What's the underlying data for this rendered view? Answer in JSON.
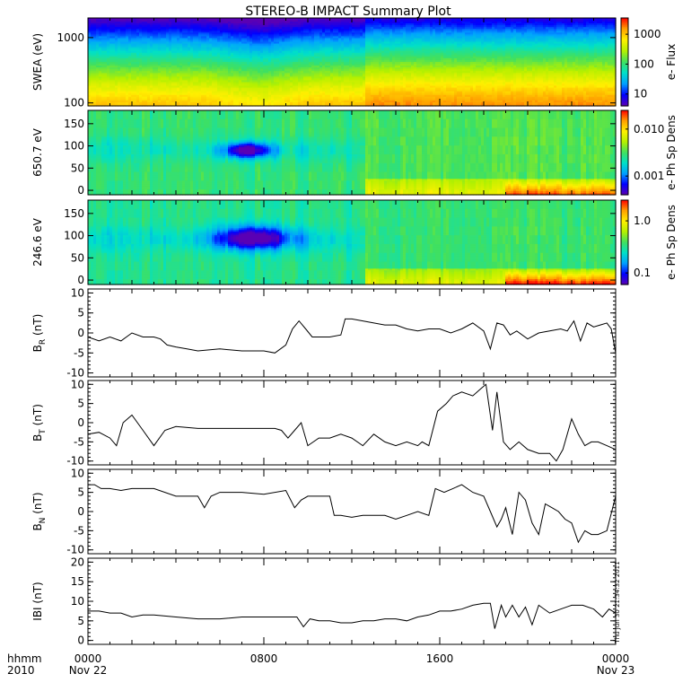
{
  "title": "STEREO-B IMPACT Summary Plot",
  "stamp": "Thu Jun 30 21:34:32 2011",
  "time_axis": {
    "corner_top": "hhmm",
    "corner_bottom": "2010",
    "ticks": [
      {
        "hours": 0,
        "top": "0000",
        "bottom": "Nov 22"
      },
      {
        "hours": 8,
        "top": "0800",
        "bottom": ""
      },
      {
        "hours": 16,
        "top": "1600",
        "bottom": ""
      },
      {
        "hours": 24,
        "top": "0000",
        "bottom": "Nov 23"
      }
    ],
    "range_hours": [
      0,
      24
    ]
  },
  "colors": {
    "colormap": [
      "#5a00b4",
      "#0000ff",
      "#00a0ff",
      "#00e0c8",
      "#40e060",
      "#b4f000",
      "#fff000",
      "#ffa000",
      "#ff0000"
    ],
    "line": "#000000"
  },
  "chart_data": [
    {
      "type": "heatmap",
      "ylabel": "SWEA (eV)",
      "yscale": "log",
      "ylim": [
        90,
        2000
      ],
      "yticks": [
        {
          "v": 100,
          "label": "100"
        },
        {
          "v": 1000,
          "label": "1000"
        }
      ],
      "colorbar": {
        "label": "e- Flux",
        "scale": "log",
        "range": [
          4,
          3500
        ],
        "ticks": [
          {
            "v": 10,
            "label": "10"
          },
          {
            "v": 100,
            "label": "100"
          },
          {
            "v": 1000,
            "label": "1000"
          }
        ]
      },
      "model": "energy"
    },
    {
      "type": "heatmap",
      "ylabel": "650.7 eV",
      "yscale": "linear",
      "ylim": [
        -10,
        180
      ],
      "yticks": [
        {
          "v": 0,
          "label": "0"
        },
        {
          "v": 50,
          "label": "50"
        },
        {
          "v": 100,
          "label": "100"
        },
        {
          "v": 150,
          "label": "150"
        }
      ],
      "colorbar": {
        "label": "e- Ph Sp Dens",
        "scale": "log",
        "range": [
          0.0004,
          0.025
        ],
        "ticks": [
          {
            "v": 0.001,
            "label": "0.001"
          },
          {
            "v": 0.01,
            "label": "0.010"
          }
        ]
      },
      "model": "pitch650",
      "features": [
        {
          "hours": [
            6.0,
            8.5
          ],
          "pitch": [
            70,
            110
          ],
          "value": "min"
        }
      ]
    },
    {
      "type": "heatmap",
      "ylabel": "246.6 eV",
      "yscale": "linear",
      "ylim": [
        -10,
        180
      ],
      "yticks": [
        {
          "v": 0,
          "label": "0"
        },
        {
          "v": 50,
          "label": "50"
        },
        {
          "v": 100,
          "label": "100"
        },
        {
          "v": 150,
          "label": "150"
        }
      ],
      "colorbar": {
        "label": "e- Ph Sp Dens",
        "scale": "log",
        "range": [
          0.06,
          2.5
        ],
        "ticks": [
          {
            "v": 0.1,
            "label": "0.1"
          },
          {
            "v": 1.0,
            "label": "1.0"
          }
        ]
      },
      "model": "pitch246",
      "features": [
        {
          "hours": [
            5.5,
            9.5
          ],
          "pitch": [
            65,
            125
          ],
          "value": "min"
        }
      ]
    },
    {
      "type": "line",
      "ylabel": "B",
      "ylabel_sub": "R",
      "ylabel_unit": " (nT)",
      "ylim": [
        -11,
        11
      ],
      "yticks": [
        -10,
        -5,
        0,
        5,
        10
      ],
      "x": [
        0,
        0.5,
        1.0,
        1.5,
        2.0,
        2.5,
        3.0,
        3.3,
        3.6,
        4.0,
        4.5,
        5.0,
        6.0,
        7.0,
        8.0,
        8.5,
        9.0,
        9.3,
        9.6,
        9.9,
        10.2,
        10.5,
        11.0,
        11.5,
        11.7,
        12.0,
        12.5,
        13.0,
        13.5,
        14.0,
        14.5,
        15.0,
        15.5,
        16.0,
        16.5,
        17.0,
        17.5,
        18.0,
        18.3,
        18.6,
        18.9,
        19.2,
        19.5,
        20.0,
        20.5,
        21.0,
        21.5,
        21.8,
        22.1,
        22.4,
        22.7,
        23.0,
        23.3,
        23.6,
        23.8,
        24.0
      ],
      "y": [
        -1,
        -2,
        -1,
        -2,
        0,
        -1,
        -1,
        -1.5,
        -3,
        -3.5,
        -4,
        -4.5,
        -4,
        -4.5,
        -4.5,
        -5,
        -3,
        1,
        3,
        1,
        -1,
        -1,
        -1,
        -0.5,
        3.5,
        3.5,
        3,
        2.5,
        2,
        2,
        1,
        0.5,
        1,
        1,
        0,
        1,
        2.5,
        0.5,
        -4,
        2.5,
        2,
        -0.5,
        0.5,
        -1.5,
        0,
        0.5,
        1,
        0.5,
        3,
        -2,
        2.5,
        1.5,
        2,
        2.5,
        1,
        -5
      ]
    },
    {
      "type": "line",
      "ylabel": "B",
      "ylabel_sub": "T",
      "ylabel_unit": " (nT)",
      "ylim": [
        -11,
        11
      ],
      "yticks": [
        -10,
        -5,
        0,
        5,
        10
      ],
      "x": [
        0,
        0.5,
        1.0,
        1.3,
        1.6,
        2.0,
        2.5,
        3.0,
        3.5,
        4.0,
        5.0,
        6.0,
        7.0,
        8.0,
        8.5,
        8.8,
        9.1,
        9.4,
        9.7,
        10.0,
        10.5,
        11.0,
        11.5,
        12.0,
        12.5,
        13.0,
        13.5,
        14.0,
        14.5,
        15.0,
        15.2,
        15.5,
        15.9,
        16.3,
        16.6,
        17.0,
        17.5,
        17.9,
        18.1,
        18.4,
        18.6,
        18.9,
        19.2,
        19.6,
        20.0,
        20.5,
        21.0,
        21.3,
        21.6,
        22.0,
        22.3,
        22.6,
        22.9,
        23.2,
        23.6,
        24.0
      ],
      "y": [
        -3,
        -2.5,
        -4,
        -6,
        0,
        2,
        -2,
        -6,
        -2,
        -1,
        -1.5,
        -1.5,
        -1.5,
        -1.5,
        -1.5,
        -2,
        -4,
        -2,
        0,
        -6,
        -4,
        -4,
        -3,
        -4,
        -6,
        -3,
        -5,
        -6,
        -5,
        -6,
        -5,
        -6,
        3,
        5,
        7,
        8,
        7,
        9,
        10,
        -2,
        8,
        -5,
        -7,
        -5,
        -7,
        -8,
        -8,
        -10,
        -7,
        1,
        -3,
        -6,
        -5,
        -5,
        -6,
        -7
      ]
    },
    {
      "type": "line",
      "ylabel": "B",
      "ylabel_sub": "N",
      "ylabel_unit": " (nT)",
      "ylim": [
        -11,
        11
      ],
      "yticks": [
        -10,
        -5,
        0,
        5,
        10
      ],
      "x": [
        0,
        0.3,
        0.6,
        1.0,
        1.5,
        2.0,
        3.0,
        4.0,
        5.0,
        5.3,
        5.6,
        6.0,
        7.0,
        8.0,
        9.0,
        9.4,
        9.7,
        10.0,
        10.5,
        11.0,
        11.2,
        11.5,
        12.0,
        12.5,
        13.0,
        13.5,
        14.0,
        14.5,
        15.0,
        15.5,
        15.8,
        16.2,
        16.6,
        17.0,
        17.5,
        18.0,
        18.3,
        18.6,
        18.8,
        19.0,
        19.3,
        19.6,
        19.9,
        20.2,
        20.5,
        20.8,
        21.1,
        21.4,
        21.7,
        22.0,
        22.3,
        22.6,
        22.9,
        23.2,
        23.6,
        24.0
      ],
      "y": [
        7,
        7,
        6,
        6,
        5.5,
        6,
        6,
        4,
        4,
        1,
        4,
        5,
        5,
        4.5,
        5.5,
        1,
        3,
        4,
        4,
        4,
        -1,
        -1,
        -1.5,
        -1,
        -1,
        -1,
        -2,
        -1,
        0,
        -1,
        6,
        5,
        6,
        7,
        5,
        4,
        0,
        -4,
        -2,
        1,
        -6,
        5,
        3,
        -3,
        -6,
        2,
        1,
        0,
        -2,
        -3,
        -8,
        -5,
        -6,
        -6,
        -5,
        4
      ]
    },
    {
      "type": "line",
      "ylabel": "IBI",
      "ylabel_sub": "",
      "ylabel_unit": " (nT)",
      "ylim": [
        -1,
        21
      ],
      "yticks": [
        0,
        5,
        10,
        15,
        20
      ],
      "x": [
        0,
        0.5,
        1.0,
        1.5,
        2.0,
        2.5,
        3.0,
        4.0,
        5.0,
        6.0,
        7.0,
        8.0,
        9.0,
        9.5,
        9.8,
        10.1,
        10.5,
        11.0,
        11.5,
        12.0,
        12.5,
        13.0,
        13.5,
        14.0,
        14.5,
        15.0,
        15.5,
        16.0,
        16.5,
        17.0,
        17.5,
        18.0,
        18.3,
        18.5,
        18.8,
        19.0,
        19.3,
        19.6,
        19.9,
        20.2,
        20.5,
        21.0,
        21.5,
        22.0,
        22.5,
        23.0,
        23.4,
        23.7,
        24.0
      ],
      "y": [
        7.5,
        7.5,
        7,
        7,
        6,
        6.5,
        6.5,
        6,
        5.5,
        5.5,
        6,
        6,
        6,
        6,
        3.5,
        5.5,
        5,
        5,
        4.5,
        4.5,
        5,
        5,
        5.5,
        5.5,
        5,
        6,
        6.5,
        7.5,
        7.5,
        8,
        9,
        9.5,
        9.5,
        3,
        9,
        6,
        9,
        6,
        8.5,
        4,
        9,
        7,
        8,
        9,
        9,
        8,
        6,
        8,
        7
      ]
    }
  ]
}
